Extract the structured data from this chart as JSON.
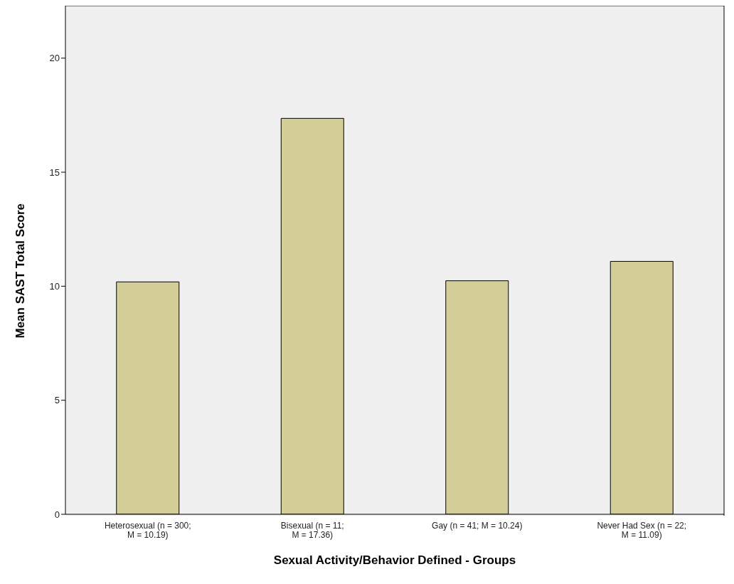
{
  "chart_data": {
    "type": "bar",
    "xlabel": "Sexual Activity/Behavior Defined - Groups",
    "ylabel": "Mean SAST Total Score",
    "categories": [
      "Heterosexual (n = 300;\nM = 10.19)",
      "Bisexual (n = 11;\nM = 17.36)",
      "Gay (n = 41; M = 10.24)",
      "Never Had Sex (n = 22;\nM = 11.09)"
    ],
    "values": [
      10.19,
      17.36,
      10.24,
      11.09
    ],
    "color": "#d3ce97",
    "ylim": [
      0,
      22.3
    ],
    "yticks": [
      0,
      5,
      10,
      15,
      20
    ],
    "grid": false,
    "legend": false
  }
}
